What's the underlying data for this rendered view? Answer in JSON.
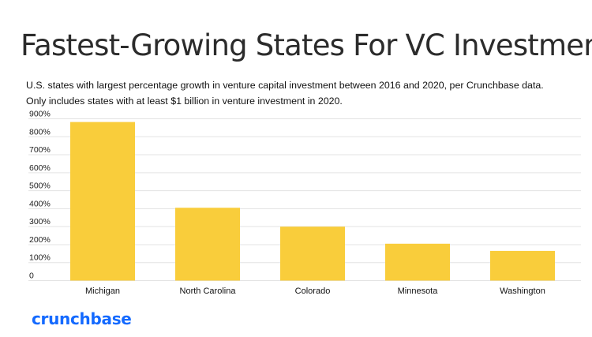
{
  "chart_data": {
    "type": "bar",
    "title": "Fastest-Growing States For VC Investment",
    "subtitle_lines": [
      "U.S. states with largest percentage growth in venture capital investment between 2016 and 2020, per Crunchbase data.",
      "Only includes states with at least $1 billion in venture investment in 2020."
    ],
    "categories": [
      "Michigan",
      "North Carolina",
      "Colorado",
      "Minnesota",
      "Washington"
    ],
    "values": [
      882,
      405,
      300,
      205,
      165
    ],
    "y_ticks": [
      {
        "value": 0,
        "label": "0"
      },
      {
        "value": 100,
        "label": "100%"
      },
      {
        "value": 200,
        "label": "200%"
      },
      {
        "value": 300,
        "label": "300%"
      },
      {
        "value": 400,
        "label": "400%"
      },
      {
        "value": 500,
        "label": "500%"
      },
      {
        "value": 600,
        "label": "600%"
      },
      {
        "value": 700,
        "label": "700%"
      },
      {
        "value": 800,
        "label": "800%"
      },
      {
        "value": 900,
        "label": "900%"
      }
    ],
    "ylim": [
      0,
      900
    ],
    "xlabel": "",
    "ylabel": "",
    "grid": true,
    "bar_color": "#f9cd3b",
    "grid_color": "#e3e3e3"
  },
  "brand": {
    "name": "crunchbase",
    "color": "#146aff"
  }
}
